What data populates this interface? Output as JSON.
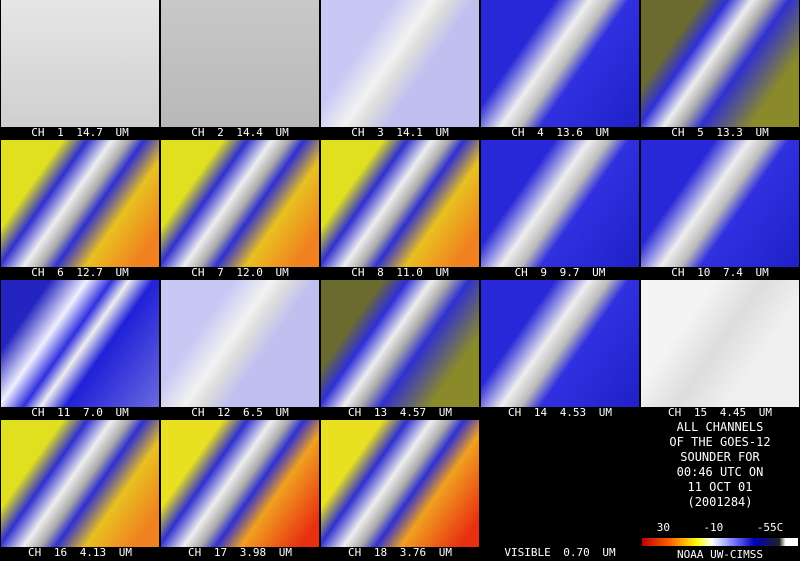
{
  "panels": [
    {
      "label": "CH 1 14.7 UM"
    },
    {
      "label": "CH 2 14.4 UM"
    },
    {
      "label": "CH 3 14.1 UM"
    },
    {
      "label": "CH 4 13.6 UM"
    },
    {
      "label": "CH 5 13.3 UM"
    },
    {
      "label": "CH 6 12.7 UM"
    },
    {
      "label": "CH 7 12.0 UM"
    },
    {
      "label": "CH 8 11.0 UM"
    },
    {
      "label": "CH 9 9.7 UM"
    },
    {
      "label": "CH 10 7.4 UM"
    },
    {
      "label": "CH 11 7.0 UM"
    },
    {
      "label": "CH 12 6.5 UM"
    },
    {
      "label": "CH 13 4.57 UM"
    },
    {
      "label": "CH 14 4.53 UM"
    },
    {
      "label": "CH 15 4.45 UM"
    },
    {
      "label": "CH 16 4.13 UM"
    },
    {
      "label": "CH 17 3.98 UM"
    },
    {
      "label": "CH 18 3.76 UM"
    },
    {
      "label": "VISIBLE 0.70 UM"
    }
  ],
  "info": {
    "lines": [
      "ALL CHANNELS",
      "OF THE GOES-12",
      "SOUNDER FOR",
      "00:46 UTC ON",
      "11 OCT 01",
      "(2001284)"
    ],
    "scale_labels": [
      "30",
      "-10",
      "-55C"
    ],
    "credit": "NOAA UW-CIMSS"
  }
}
